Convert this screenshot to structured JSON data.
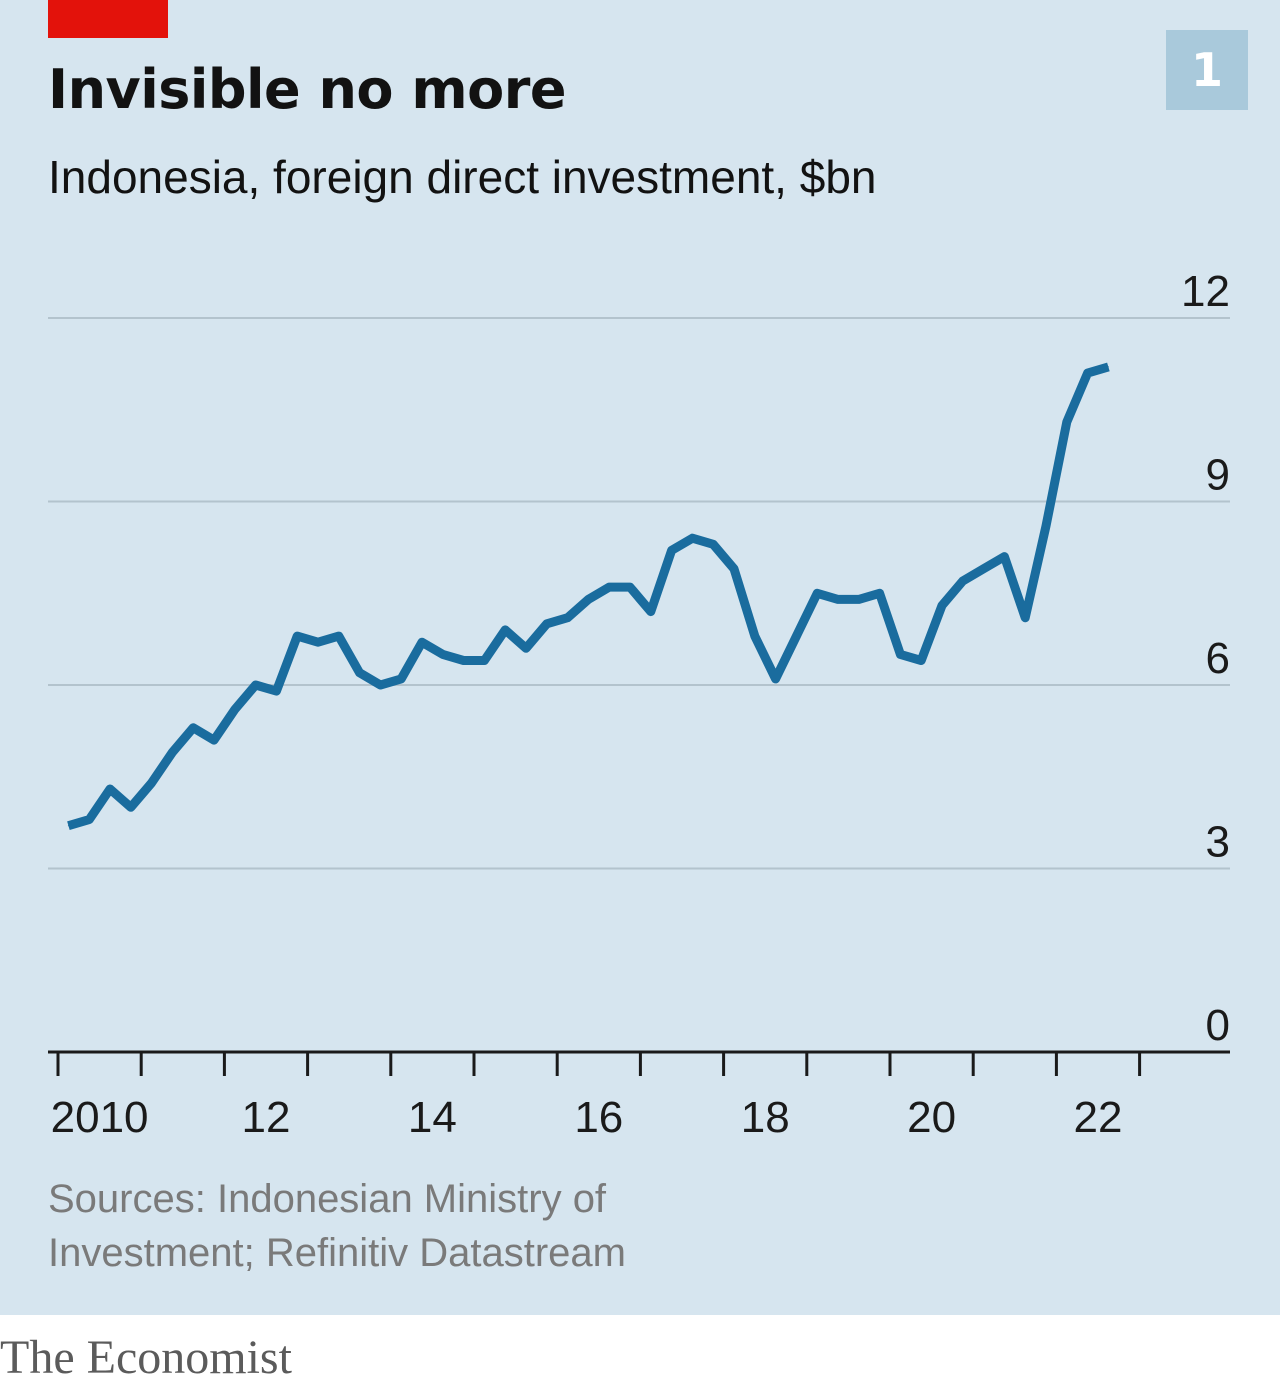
{
  "header": {
    "title": "Invisible no more",
    "subtitle": "Indonesia, foreign direct investment, $bn",
    "badge": "1"
  },
  "footer": {
    "sources": "Sources: Indonesian Ministry of Investment; Refinitiv Datastream",
    "logo": "The Economist"
  },
  "colors": {
    "background": "#d6e5ef",
    "line": "#1a6c9e",
    "accent": "#e3120b",
    "badge": "#a9c9db",
    "gridline": "#b3c3cd"
  },
  "chart_data": {
    "type": "line",
    "title": "Invisible no more",
    "subtitle": "Indonesia, foreign direct investment, $bn",
    "xlabel": "",
    "ylabel": "",
    "ylim": [
      0,
      12
    ],
    "yticks": [
      0,
      3,
      6,
      9,
      12
    ],
    "y_axis_position": "right",
    "grid": true,
    "xlim": [
      2010,
      2023.8
    ],
    "xtick_years": [
      2010,
      2011,
      2012,
      2013,
      2014,
      2015,
      2016,
      2017,
      2018,
      2019,
      2020,
      2021,
      2022,
      2023
    ],
    "xtick_labels": [
      {
        "year": 2010,
        "label": "2010"
      },
      {
        "year": 2012,
        "label": "12"
      },
      {
        "year": 2014,
        "label": "14"
      },
      {
        "year": 2016,
        "label": "16"
      },
      {
        "year": 2018,
        "label": "18"
      },
      {
        "year": 2020,
        "label": "20"
      },
      {
        "year": 2022,
        "label": "22"
      }
    ],
    "series": [
      {
        "frequency": "quarterly",
        "x": [
          2010.125,
          2010.375,
          2010.625,
          2010.875,
          2011.125,
          2011.375,
          2011.625,
          2011.875,
          2012.125,
          2012.375,
          2012.625,
          2012.875,
          2013.125,
          2013.375,
          2013.625,
          2013.875,
          2014.125,
          2014.375,
          2014.625,
          2014.875,
          2015.125,
          2015.375,
          2015.625,
          2015.875,
          2016.125,
          2016.375,
          2016.625,
          2016.875,
          2017.125,
          2017.375,
          2017.625,
          2017.875,
          2018.125,
          2018.375,
          2018.625,
          2018.875,
          2019.125,
          2019.375,
          2019.625,
          2019.875,
          2020.125,
          2020.375,
          2020.625,
          2020.875,
          2021.125,
          2021.375,
          2021.625,
          2021.875,
          2022.125,
          2022.375,
          2022.625
        ],
        "values": [
          3.7,
          3.8,
          4.3,
          4.0,
          4.4,
          4.9,
          5.3,
          5.1,
          5.6,
          6.0,
          5.9,
          6.8,
          6.7,
          6.8,
          6.2,
          6.0,
          6.1,
          6.7,
          6.5,
          6.4,
          6.4,
          6.9,
          6.6,
          7.0,
          7.1,
          7.4,
          7.6,
          7.6,
          7.2,
          8.2,
          8.4,
          8.3,
          7.9,
          6.8,
          6.1,
          6.8,
          7.5,
          7.4,
          7.4,
          7.5,
          6.5,
          6.4,
          7.3,
          7.7,
          7.9,
          8.1,
          7.1,
          8.6,
          10.3,
          11.1,
          11.2
        ]
      }
    ]
  }
}
